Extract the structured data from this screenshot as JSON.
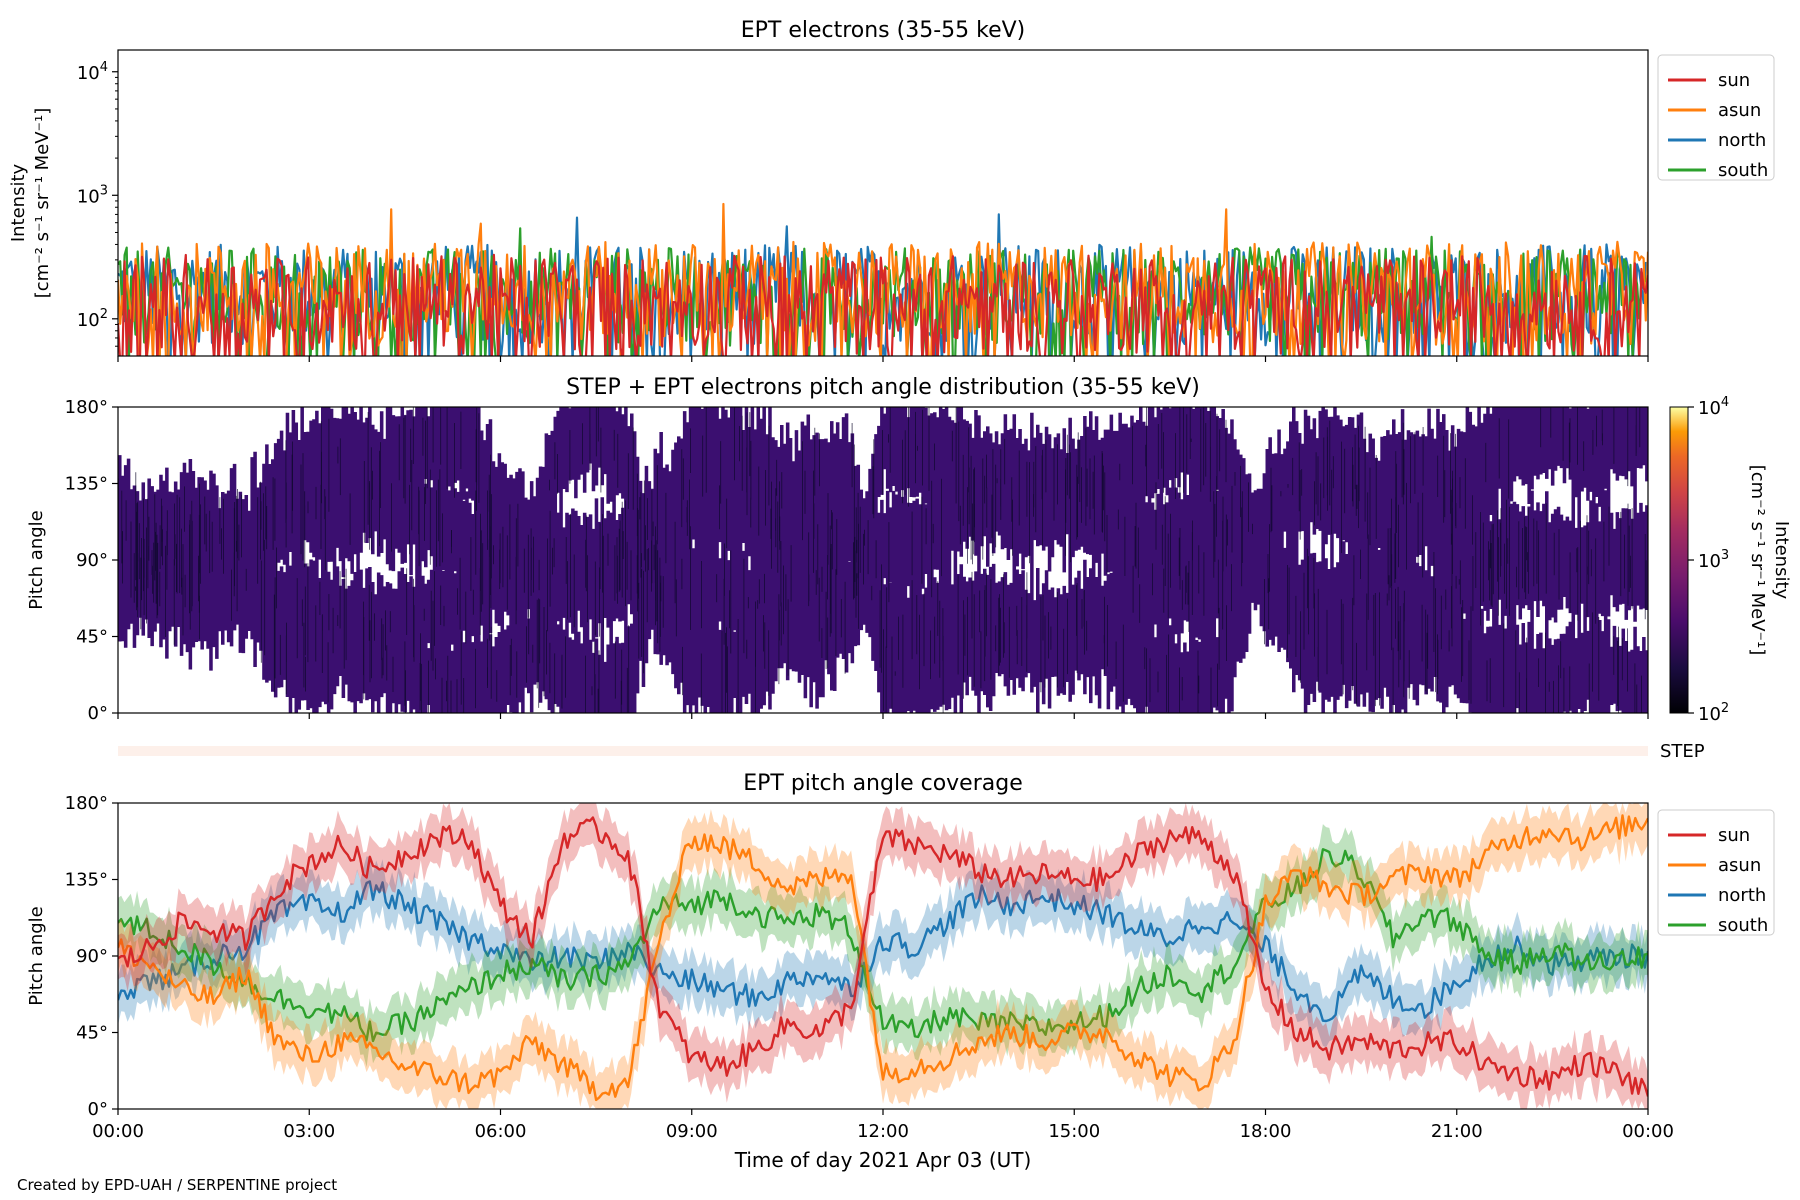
{
  "figure_footer": "Created by EPD-UAH / SERPENTINE project",
  "colors": {
    "sun": "#d62728",
    "asun": "#ff7f0e",
    "north": "#1f77b4",
    "south": "#2ca02c",
    "heatmap_fill": "#3b0f70",
    "step_band": "#fdf0ea"
  },
  "icons": {
    "legend_marker": "line-swatch"
  },
  "chart_data": [
    {
      "type": "line",
      "title": "EPT electrons (35-55 keV)",
      "ylabel_line1": "Intensity",
      "ylabel_line2": "[cm⁻² s⁻¹ sr⁻¹ MeV⁻¹]",
      "yscale": "log",
      "ylim": [
        50,
        15000
      ],
      "yticks": [
        {
          "value": 100,
          "base": "10",
          "exp": "2"
        },
        {
          "value": 1000,
          "base": "10",
          "exp": "3"
        },
        {
          "value": 10000,
          "base": "10",
          "exp": "4"
        }
      ],
      "x_hours": [
        0,
        3,
        6,
        9,
        12,
        15,
        18,
        21,
        24
      ],
      "legend": [
        "sun",
        "asun",
        "north",
        "south"
      ],
      "legend_position": "upper-right outside",
      "series": [
        {
          "name": "sun",
          "typical_range": [
            50,
            330
          ]
        },
        {
          "name": "asun",
          "typical_range": [
            60,
            420
          ],
          "peaks": [
            {
              "hour": 9.5,
              "value": 850
            },
            {
              "hour": 4.3,
              "value": 770
            },
            {
              "hour": 17.4,
              "value": 770
            },
            {
              "hour": 5.7,
              "value": 590
            }
          ]
        },
        {
          "name": "north",
          "typical_range": [
            60,
            400
          ],
          "peaks": [
            {
              "hour": 13.8,
              "value": 700
            },
            {
              "hour": 7.2,
              "value": 660
            },
            {
              "hour": 10.5,
              "value": 560
            }
          ]
        },
        {
          "name": "south",
          "typical_range": [
            60,
            380
          ],
          "peaks": [
            {
              "hour": 6.3,
              "value": 540
            },
            {
              "hour": 20.6,
              "value": 460
            }
          ]
        }
      ]
    },
    {
      "type": "heatmap",
      "title": "STEP + EPT electrons pitch angle distribution (35-55 keV)",
      "ylabel": "Pitch angle",
      "ylim": [
        0,
        180
      ],
      "yticks": [
        "0°",
        "45°",
        "90°",
        "135°",
        "180°"
      ],
      "x_hours": [
        0,
        3,
        6,
        9,
        12,
        15,
        18,
        21,
        24
      ],
      "colorbar": {
        "label_line1": "Intensity",
        "label_line2": "[cm⁻² s⁻¹ sr⁻¹ MeV⁻¹]",
        "scale": "log",
        "range": [
          100,
          10000
        ],
        "ticks": [
          {
            "base": "10",
            "exp": "2"
          },
          {
            "base": "10",
            "exp": "3"
          },
          {
            "base": "10",
            "exp": "4"
          }
        ],
        "colormap": "inferno"
      },
      "step_label": "STEP"
    },
    {
      "type": "line",
      "title": "EPT pitch angle coverage",
      "ylabel": "Pitch angle",
      "ylim": [
        0,
        180
      ],
      "yticks": [
        "0°",
        "45°",
        "90°",
        "135°",
        "180°"
      ],
      "xlabel": "Time of day 2021 Apr 03 (UT)",
      "x_hours": [
        0,
        3,
        6,
        9,
        12,
        15,
        18,
        21,
        24
      ],
      "xtick_labels": [
        "00:00",
        "03:00",
        "06:00",
        "09:00",
        "12:00",
        "15:00",
        "18:00",
        "21:00",
        "00:00"
      ],
      "legend": [
        "sun",
        "asun",
        "north",
        "south"
      ],
      "legend_position": "upper-right outside",
      "series": [
        {
          "name": "sun",
          "hours": [
            0,
            0.5,
            1,
            1.5,
            2,
            2.5,
            3,
            3.5,
            4,
            4.5,
            5,
            5.5,
            6,
            6.5,
            7,
            7.5,
            8,
            8.5,
            9,
            9.5,
            10,
            10.5,
            11,
            11.5,
            12,
            12.5,
            13,
            13.5,
            14,
            14.5,
            15,
            15.5,
            16,
            16.5,
            17,
            17.5,
            18,
            18.5,
            19,
            19.5,
            20,
            20.5,
            21,
            21.5,
            22,
            22.5,
            23,
            23.5,
            24
          ],
          "values": [
            85,
            95,
            110,
            105,
            100,
            130,
            145,
            155,
            140,
            150,
            160,
            160,
            120,
            100,
            160,
            165,
            150,
            60,
            30,
            25,
            35,
            50,
            45,
            60,
            160,
            155,
            150,
            140,
            135,
            138,
            135,
            135,
            150,
            160,
            160,
            140,
            70,
            45,
            35,
            40,
            35,
            38,
            40,
            25,
            20,
            18,
            28,
            22,
            8
          ]
        },
        {
          "name": "asun",
          "hours": [
            0,
            0.5,
            1,
            1.5,
            2,
            2.5,
            3,
            3.5,
            4,
            4.5,
            5,
            5.5,
            6,
            6.5,
            7,
            7.5,
            8,
            8.5,
            9,
            9.5,
            10,
            10.5,
            11,
            11.5,
            12,
            12.5,
            13,
            13.5,
            14,
            14.5,
            15,
            15.5,
            16,
            16.5,
            17,
            17.5,
            18,
            18.5,
            19,
            19.5,
            20,
            20.5,
            21,
            21.5,
            22,
            22.5,
            23,
            23.5,
            24
          ],
          "values": [
            95,
            85,
            70,
            65,
            80,
            40,
            30,
            40,
            35,
            25,
            20,
            15,
            20,
            40,
            25,
            12,
            15,
            100,
            160,
            155,
            145,
            130,
            135,
            140,
            20,
            25,
            30,
            40,
            45,
            40,
            45,
            45,
            30,
            20,
            15,
            40,
            120,
            140,
            130,
            125,
            135,
            140,
            135,
            150,
            160,
            165,
            158,
            165,
            170
          ]
        },
        {
          "name": "north",
          "hours": [
            0,
            0.5,
            1,
            1.5,
            2,
            2.5,
            3,
            3.5,
            4,
            4.5,
            5,
            5.5,
            6,
            6.5,
            7,
            7.5,
            8,
            8.5,
            9,
            9.5,
            10,
            10.5,
            11,
            11.5,
            12,
            12.5,
            13,
            13.5,
            14,
            14.5,
            15,
            15.5,
            16,
            16.5,
            17,
            17.5,
            18,
            18.5,
            19,
            19.5,
            20,
            20.5,
            21,
            21.5,
            22,
            22.5,
            23,
            23.5,
            24
          ],
          "values": [
            70,
            75,
            80,
            90,
            95,
            115,
            120,
            115,
            130,
            120,
            110,
            100,
            95,
            85,
            90,
            85,
            95,
            80,
            75,
            70,
            65,
            75,
            80,
            70,
            100,
            95,
            110,
            125,
            120,
            125,
            120,
            115,
            105,
            100,
            110,
            110,
            95,
            70,
            55,
            80,
            65,
            60,
            75,
            90,
            95,
            85,
            88,
            90,
            90
          ]
        },
        {
          "name": "south",
          "hours": [
            0,
            0.5,
            1,
            1.5,
            2,
            2.5,
            3,
            3.5,
            4,
            4.5,
            5,
            5.5,
            6,
            6.5,
            7,
            7.5,
            8,
            8.5,
            9,
            9.5,
            10,
            10.5,
            11,
            11.5,
            12,
            12.5,
            13,
            13.5,
            14,
            14.5,
            15,
            15.5,
            16,
            16.5,
            17,
            17.5,
            18,
            18.5,
            19,
            19.5,
            20,
            20.5,
            21,
            21.5,
            22,
            22.5,
            23,
            23.5,
            24
          ],
          "values": [
            110,
            105,
            95,
            85,
            75,
            65,
            60,
            55,
            45,
            50,
            60,
            70,
            80,
            85,
            75,
            78,
            85,
            120,
            120,
            125,
            115,
            110,
            115,
            105,
            50,
            45,
            55,
            50,
            50,
            48,
            50,
            55,
            70,
            80,
            70,
            85,
            120,
            130,
            150,
            140,
            100,
            115,
            110,
            90,
            85,
            95,
            85,
            88,
            90
          ]
        }
      ]
    }
  ]
}
